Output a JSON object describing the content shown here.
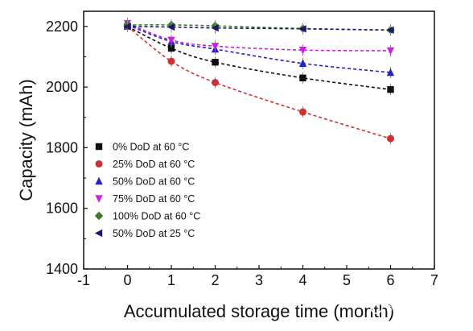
{
  "chart_data": {
    "type": "scatter",
    "xlabel": "Accumulated storage time (month)",
    "ylabel": "Capacity (mAh)",
    "xlim": [
      -1,
      7
    ],
    "ylim": [
      1400,
      2250
    ],
    "x_ticks": [
      -1,
      0,
      1,
      2,
      3,
      4,
      5,
      6,
      7
    ],
    "y_ticks": [
      1400,
      1600,
      1800,
      2000,
      2200
    ],
    "fit_lines": "dashed",
    "legend_position": "bottom-left",
    "series": [
      {
        "name": "0% DoD at 60 °C",
        "color": "#111111",
        "marker": "square",
        "x": [
          0,
          1,
          2,
          4,
          6
        ],
        "y": [
          2200,
          2128,
          2082,
          2030,
          1992
        ]
      },
      {
        "name": "25% DoD at 60 °C",
        "color": "#d03030",
        "marker": "circle",
        "x": [
          0,
          1,
          2,
          4,
          6
        ],
        "y": [
          2200,
          2085,
          2015,
          1918,
          1830
        ]
      },
      {
        "name": "50% DoD at 60 °C",
        "color": "#2222cc",
        "marker": "triangle-up",
        "x": [
          0,
          1,
          2,
          4,
          6
        ],
        "y": [
          2205,
          2150,
          2125,
          2078,
          2048
        ]
      },
      {
        "name": "75% DoD at 60 °C",
        "color": "#cc22dd",
        "marker": "triangle-down",
        "x": [
          0,
          1,
          2,
          4,
          6
        ],
        "y": [
          2210,
          2155,
          2135,
          2122,
          2120
        ]
      },
      {
        "name": "100% DoD at 60 °C",
        "color": "#3e7a2a",
        "marker": "diamond",
        "x": [
          0,
          1,
          2,
          4,
          6
        ],
        "y": [
          2205,
          2205,
          2202,
          2193,
          2188
        ]
      },
      {
        "name": "50% DoD at 25 °C",
        "color": "#1a1a66",
        "marker": "triangle-left",
        "x": [
          0,
          1,
          2,
          4,
          6
        ],
        "y": [
          2200,
          2198,
          2195,
          2192,
          2188
        ]
      }
    ]
  },
  "watermark": {
    "text": "新能源Leader"
  }
}
